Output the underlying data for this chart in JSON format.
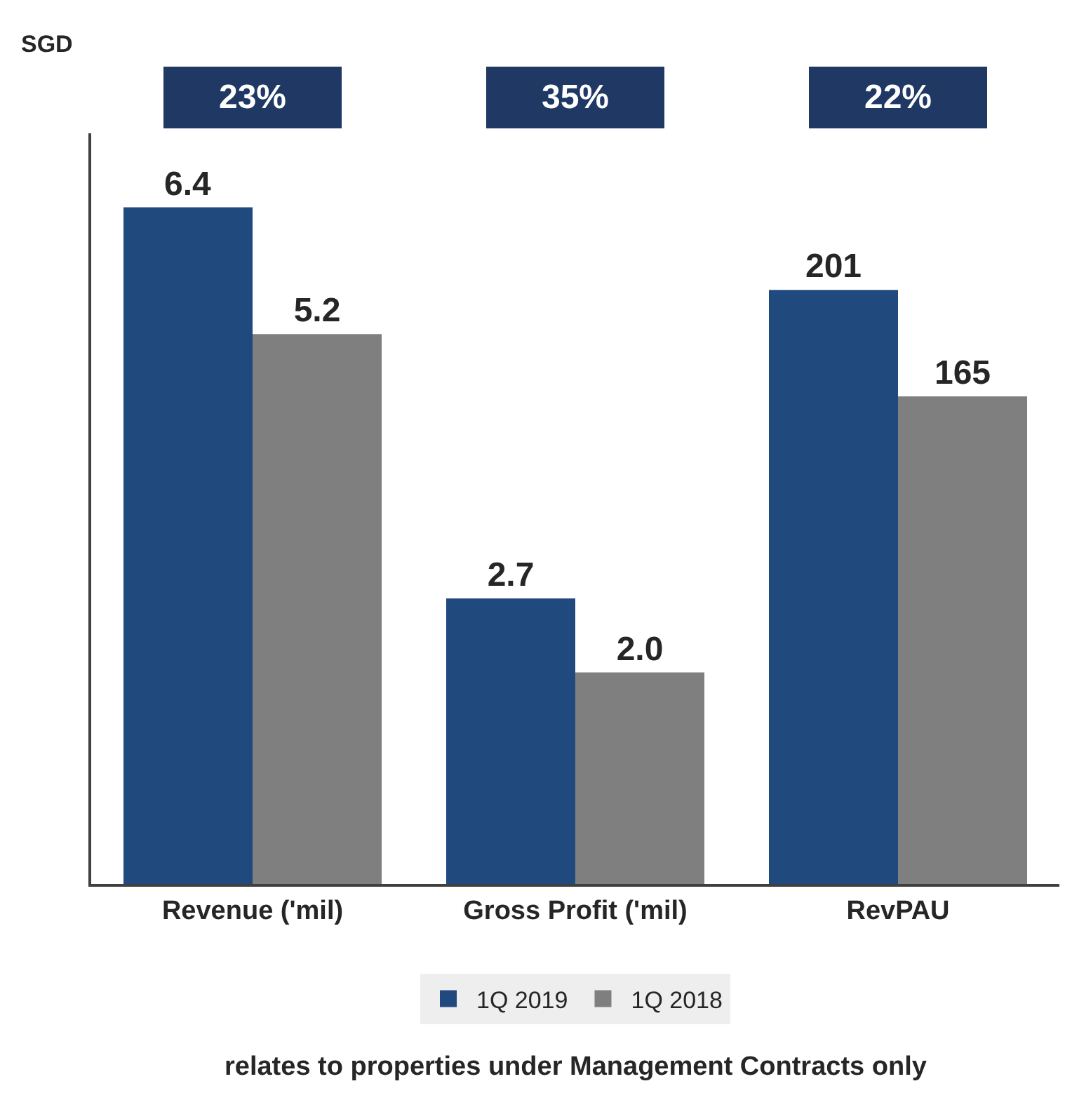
{
  "chart_data": {
    "type": "bar",
    "ylabel": "SGD",
    "categories": [
      "Revenue ('mil)",
      "Gross Profit ('mil)",
      "RevPAU"
    ],
    "series": [
      {
        "name": "1Q 2019",
        "color": "#204a7e",
        "values": [
          6.4,
          2.7,
          null
        ],
        "value_labels": [
          "6.4",
          "2.7",
          null
        ]
      },
      {
        "name": "1Q 2018",
        "color": "#7f7f7f",
        "values": [
          5.2,
          2.0,
          null
        ],
        "value_labels": [
          "5.2",
          "2.0",
          null
        ]
      },
      {
        "color": "#204a7e",
        "values": [
          null,
          null,
          201
        ],
        "axis": "y2",
        "value_labels": [
          null,
          null,
          "201"
        ]
      },
      {
        "color": "#7f7f7f",
        "values": [
          null,
          null,
          165
        ],
        "axis": "y2",
        "value_labels": [
          null,
          null,
          "165"
        ]
      }
    ],
    "ylim": [
      0,
      7.1
    ],
    "y2lim": [
      0,
      254
    ],
    "tick_labels": "x",
    "legend": "bottom",
    "annotations": [
      "23%",
      "35%",
      "22%",
      "relates to properties under Management Contracts only"
    ]
  }
}
